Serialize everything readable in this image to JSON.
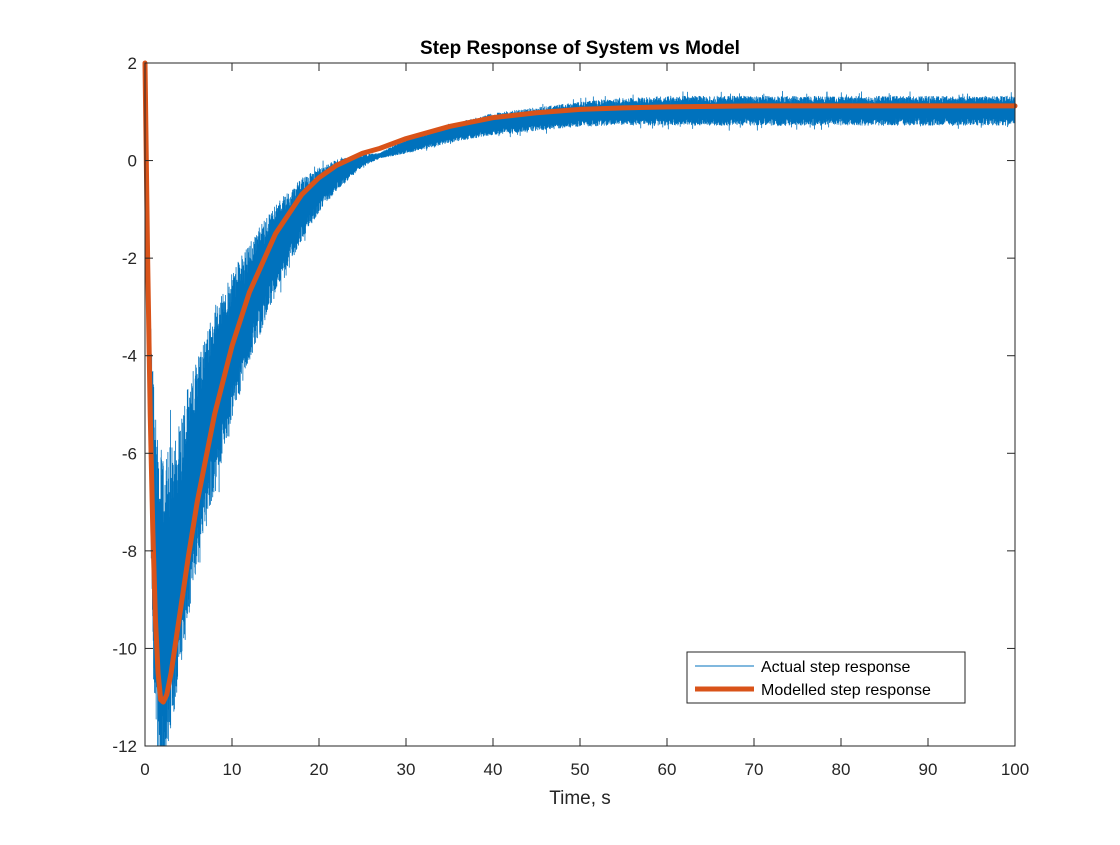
{
  "colors": {
    "actual": "#0072BD",
    "model": "#D95319",
    "axes": "#262626",
    "background": "#ffffff"
  },
  "chart_data": {
    "type": "line",
    "title": "Step Response of System vs Model",
    "xlabel": "Time, s",
    "ylabel": "",
    "xlim": [
      0,
      100
    ],
    "ylim": [
      -12,
      2
    ],
    "xticks": [
      0,
      10,
      20,
      30,
      40,
      50,
      60,
      70,
      80,
      90,
      100
    ],
    "yticks": [
      -12,
      -10,
      -8,
      -6,
      -4,
      -2,
      0,
      2
    ],
    "grid": false,
    "legend_position": "bottom-right",
    "series": [
      {
        "name": "Actual step response",
        "style": "noisy thin line",
        "center": {
          "x": [
            0,
            0.3,
            0.6,
            1.0,
            1.5,
            2.0,
            2.5,
            3,
            4,
            5,
            6,
            8,
            10,
            12,
            15,
            18,
            20,
            22,
            25,
            27,
            30,
            35,
            40,
            45,
            50,
            55,
            60,
            70,
            80,
            90,
            100
          ],
          "y": [
            2.0,
            -1.5,
            -5.0,
            -7.6,
            -9.0,
            -9.4,
            -9.2,
            -8.8,
            -7.9,
            -7.0,
            -6.2,
            -4.9,
            -3.8,
            -2.9,
            -1.8,
            -1.0,
            -0.6,
            -0.3,
            0.0,
            0.1,
            0.3,
            0.55,
            0.75,
            0.85,
            0.95,
            1.0,
            1.02,
            1.02,
            1.02,
            1.02,
            1.02
          ]
        },
        "band_halfwidth": {
          "x": [
            0,
            0.6,
            1.0,
            2,
            4,
            6,
            10,
            15,
            20,
            25,
            27,
            30,
            40,
            50,
            60,
            100
          ],
          "y": [
            0.0,
            1.8,
            3.2,
            3.4,
            2.6,
            2.2,
            1.5,
            0.9,
            0.45,
            0.12,
            0.05,
            0.15,
            0.22,
            0.25,
            0.3,
            0.3
          ]
        }
      },
      {
        "name": "Modelled step response",
        "style": "thick line",
        "x": [
          0,
          0.3,
          0.6,
          0.9,
          1.2,
          1.5,
          1.8,
          2.1,
          2.5,
          3,
          4,
          5,
          6,
          8,
          10,
          12,
          15,
          18,
          20,
          22,
          25,
          27,
          30,
          35,
          40,
          45,
          50,
          55,
          60,
          70,
          80,
          90,
          100
        ],
        "y": [
          2.0,
          -2.0,
          -5.2,
          -7.6,
          -9.4,
          -10.5,
          -11.05,
          -11.1,
          -10.95,
          -10.5,
          -9.3,
          -8.1,
          -7.0,
          -5.2,
          -3.8,
          -2.7,
          -1.5,
          -0.7,
          -0.35,
          -0.1,
          0.15,
          0.25,
          0.45,
          0.7,
          0.88,
          0.98,
          1.05,
          1.08,
          1.1,
          1.12,
          1.12,
          1.12,
          1.12
        ]
      }
    ]
  }
}
